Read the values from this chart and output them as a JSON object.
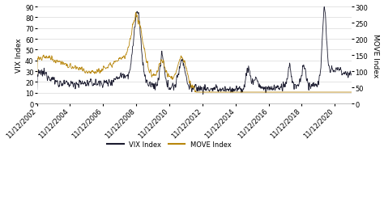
{
  "title": "",
  "vix_ylabel": "VIX Index",
  "move_ylabel": "MOVE Index",
  "vix_ylim": [
    0,
    90
  ],
  "move_ylim": [
    0,
    300
  ],
  "vix_yticks": [
    0,
    10,
    20,
    30,
    40,
    50,
    60,
    70,
    80,
    90
  ],
  "move_yticks": [
    0,
    50,
    100,
    150,
    200,
    250,
    300
  ],
  "vix_color": "#1a1a2e",
  "move_color": "#b8860b",
  "legend_vix": "VIX Index",
  "legend_move": "MOVE Index",
  "background_color": "#ffffff",
  "x_tick_labels": [
    "11/12/2002",
    "11/12/2004",
    "11/12/2006",
    "11/12/2008",
    "11/12/2010",
    "11/12/2012",
    "11/12/2014",
    "11/12/2016",
    "11/12/2018",
    "11/12/2020"
  ],
  "num_points": 988,
  "seed": 12345
}
